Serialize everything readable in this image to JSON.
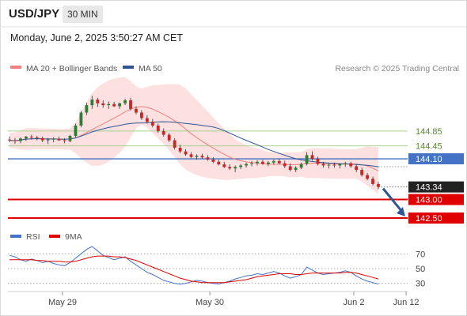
{
  "header": {
    "symbol": "USD/JPY",
    "interval": "30 MIN",
    "datetime": "Monday, June 2, 2025 3:50:27 AM CET"
  },
  "legend": {
    "ma20": "MA 20 + Bollinger Bands",
    "ma50": "MA 50",
    "ma20_color": "#f08080",
    "ma50_color": "#2f5597",
    "credit": "Research © 2025 Trading Central"
  },
  "rsi_legend": {
    "rsi": "RSI",
    "ma9": "9MA",
    "rsi_color": "#4472c4",
    "ma9_color": "#e00000"
  },
  "chart_data": [
    {
      "type": "candlestick",
      "title": "USD/JPY 30 MIN",
      "x_ticks": [
        "May 29",
        "May 30",
        "Jun 2",
        "Jun 12"
      ],
      "last_price": 143.34,
      "ohlc": [
        [
          144.62,
          144.7,
          144.55,
          144.6
        ],
        [
          144.6,
          144.66,
          144.5,
          144.58
        ],
        [
          144.58,
          144.68,
          144.52,
          144.65
        ],
        [
          144.65,
          144.72,
          144.58,
          144.7
        ],
        [
          144.7,
          144.75,
          144.62,
          144.68
        ],
        [
          144.68,
          144.72,
          144.6,
          144.66
        ],
        [
          144.66,
          144.7,
          144.55,
          144.6
        ],
        [
          144.6,
          144.66,
          144.5,
          144.62
        ],
        [
          144.62,
          144.68,
          144.55,
          144.64
        ],
        [
          144.64,
          144.7,
          144.58,
          144.6
        ],
        [
          144.6,
          144.65,
          144.52,
          144.58
        ],
        [
          144.58,
          144.75,
          144.55,
          144.72
        ],
        [
          144.72,
          145.05,
          144.68,
          145.0
        ],
        [
          145.0,
          145.4,
          144.95,
          145.35
        ],
        [
          145.35,
          145.62,
          145.28,
          145.55
        ],
        [
          145.55,
          145.8,
          145.45,
          145.7
        ],
        [
          145.7,
          145.75,
          145.5,
          145.6
        ],
        [
          145.6,
          145.68,
          145.48,
          145.55
        ],
        [
          145.55,
          145.65,
          145.45,
          145.58
        ],
        [
          145.58,
          145.64,
          145.5,
          145.52
        ],
        [
          145.52,
          145.62,
          145.45,
          145.6
        ],
        [
          145.6,
          145.72,
          145.55,
          145.68
        ],
        [
          145.68,
          145.75,
          145.4,
          145.45
        ],
        [
          145.45,
          145.52,
          145.3,
          145.35
        ],
        [
          145.35,
          145.42,
          145.15,
          145.2
        ],
        [
          145.2,
          145.28,
          145.05,
          145.1
        ],
        [
          145.1,
          145.18,
          144.95,
          145.0
        ],
        [
          145.0,
          145.05,
          144.8,
          144.85
        ],
        [
          144.85,
          144.92,
          144.7,
          144.75
        ],
        [
          144.75,
          144.8,
          144.55,
          144.6
        ],
        [
          144.6,
          144.66,
          144.35,
          144.4
        ],
        [
          144.4,
          144.48,
          144.25,
          144.3
        ],
        [
          144.3,
          144.36,
          144.18,
          144.22
        ],
        [
          144.22,
          144.28,
          144.12,
          144.15
        ],
        [
          144.15,
          144.22,
          144.08,
          144.18
        ],
        [
          144.18,
          144.24,
          144.1,
          144.14
        ],
        [
          144.14,
          144.2,
          144.05,
          144.08
        ],
        [
          144.08,
          144.14,
          143.98,
          144.02
        ],
        [
          144.02,
          144.08,
          143.92,
          143.95
        ],
        [
          143.95,
          144.02,
          143.85,
          143.88
        ],
        [
          143.88,
          143.95,
          143.8,
          143.84
        ],
        [
          143.84,
          143.92,
          143.74,
          143.88
        ],
        [
          143.88,
          143.96,
          143.82,
          143.92
        ],
        [
          143.92,
          144.0,
          143.86,
          143.96
        ],
        [
          143.96,
          144.04,
          143.9,
          143.98
        ],
        [
          143.98,
          144.06,
          143.92,
          144.02
        ],
        [
          144.02,
          144.08,
          143.94,
          143.96
        ],
        [
          143.96,
          144.04,
          143.9,
          144.0
        ],
        [
          144.0,
          144.08,
          143.94,
          144.04
        ],
        [
          144.04,
          144.1,
          143.96,
          143.98
        ],
        [
          143.98,
          144.05,
          143.85,
          143.9
        ],
        [
          143.9,
          143.98,
          143.76,
          143.8
        ],
        [
          143.8,
          143.9,
          143.74,
          143.86
        ],
        [
          143.86,
          144.0,
          143.82,
          143.96
        ],
        [
          143.96,
          144.28,
          143.92,
          144.2
        ],
        [
          144.2,
          144.3,
          144.05,
          144.1
        ],
        [
          144.1,
          144.16,
          143.92,
          143.96
        ],
        [
          143.96,
          144.02,
          143.86,
          143.92
        ],
        [
          143.92,
          143.98,
          143.84,
          143.94
        ],
        [
          143.94,
          144.0,
          143.86,
          143.92
        ],
        [
          143.92,
          143.98,
          143.84,
          143.96
        ],
        [
          143.96,
          144.02,
          143.88,
          143.98
        ],
        [
          143.98,
          144.02,
          143.86,
          143.9
        ],
        [
          143.9,
          143.96,
          143.74,
          143.8
        ],
        [
          143.8,
          143.86,
          143.62,
          143.66
        ],
        [
          143.66,
          143.72,
          143.52,
          143.56
        ],
        [
          143.56,
          143.62,
          143.38,
          143.42
        ],
        [
          143.42,
          143.48,
          143.28,
          143.34
        ]
      ],
      "levels": [
        {
          "value": 144.85,
          "label": "144.85",
          "kind": "resistance",
          "color": "#a9d18e"
        },
        {
          "value": 144.45,
          "label": "144.45",
          "kind": "resistance",
          "color": "#a9d18e"
        },
        {
          "value": 144.1,
          "label": "144.10",
          "kind": "pivot",
          "color": "#4472c4"
        },
        {
          "value": 143.34,
          "label": "143.34",
          "kind": "last",
          "color": "#222222"
        },
        {
          "value": 143.0,
          "label": "143.00",
          "kind": "support",
          "color": "#e00000"
        },
        {
          "value": 142.5,
          "label": "142.50",
          "kind": "support",
          "color": "#e00000"
        }
      ],
      "ylim": [
        142.35,
        146.3
      ]
    },
    {
      "type": "line",
      "title": "RSI",
      "y_ticks": [
        70,
        50,
        30
      ],
      "ylim": [
        20,
        80
      ],
      "series": [
        {
          "name": "RSI",
          "values": [
            68,
            66,
            62,
            60,
            63,
            61,
            58,
            60,
            57,
            55,
            54,
            58,
            64,
            70,
            76,
            80,
            74,
            68,
            65,
            62,
            64,
            66,
            60,
            55,
            50,
            45,
            42,
            38,
            34,
            32,
            30,
            29,
            30,
            32,
            34,
            33,
            31,
            30,
            29,
            31,
            33,
            36,
            38,
            40,
            41,
            43,
            42,
            44,
            46,
            44,
            40,
            37,
            39,
            42,
            52,
            48,
            44,
            42,
            43,
            44,
            45,
            47,
            45,
            40,
            36,
            33,
            31,
            29
          ]
        },
        {
          "name": "9MA",
          "values": [
            62,
            62,
            62,
            62,
            62,
            61,
            61,
            60,
            60,
            60,
            59,
            59,
            60,
            62,
            64,
            66,
            67,
            67,
            67,
            66,
            66,
            65,
            63,
            61,
            58,
            55,
            52,
            49,
            46,
            43,
            40,
            37,
            35,
            33,
            32,
            31,
            31,
            31,
            31,
            31,
            32,
            33,
            34,
            35,
            37,
            39,
            40,
            41,
            42,
            43,
            43,
            43,
            42,
            42,
            43,
            44,
            44,
            44,
            44,
            44,
            44,
            45,
            45,
            44,
            42,
            40,
            38,
            36
          ]
        }
      ]
    }
  ]
}
